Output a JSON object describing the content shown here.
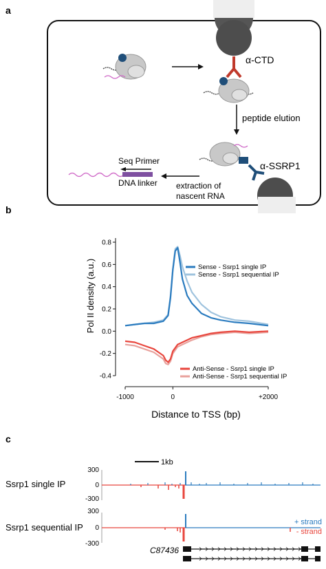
{
  "panel_a": {
    "label": "a",
    "antibody1": "α-CTD",
    "step1": "peptide elution",
    "antibody2": "α-SSRP1",
    "primer": "Seq Primer",
    "linker": "DNA linker",
    "extraction_line1": "extraction of",
    "extraction_line2": "nascent RNA"
  },
  "panel_b": {
    "label": "b",
    "colors": {
      "sense_single": "#2a7bbf",
      "sense_seq": "#9fc3de",
      "anti_single": "#e8453c",
      "anti_seq": "#e8a09b"
    },
    "chart_data": {
      "type": "line",
      "xlabel": "Distance to TSS (bp)",
      "ylabel": "Pol II density (a.u.)",
      "xlim": [
        -1000,
        2000
      ],
      "ylim": [
        -0.4,
        0.8
      ],
      "xticks": [
        "-1000",
        "0",
        "+2000"
      ],
      "yticks": [
        "0.8",
        "0.6",
        "0.4",
        "0.2",
        "0.0",
        "-0.2",
        "-0.4"
      ],
      "grid": false,
      "legend_top": [
        "Sense - Ssrp1 single IP",
        "Sense - Ssrp1 sequential IP"
      ],
      "legend_bottom": [
        "Anti-Sense - Ssrp1 single IP",
        "Anti-Sense - Ssrp1 sequential IP"
      ],
      "series": [
        {
          "name": "Sense - Ssrp1 single IP",
          "x": [
            -1000,
            -800,
            -600,
            -400,
            -200,
            -100,
            -50,
            0,
            50,
            100,
            150,
            200,
            300,
            400,
            600,
            800,
            1000,
            1300,
            1600,
            2000
          ],
          "y": [
            0.05,
            0.06,
            0.07,
            0.07,
            0.09,
            0.14,
            0.3,
            0.55,
            0.72,
            0.75,
            0.62,
            0.47,
            0.32,
            0.25,
            0.16,
            0.12,
            0.1,
            0.08,
            0.07,
            0.05
          ]
        },
        {
          "name": "Sense - Ssrp1 sequential IP",
          "x": [
            -1000,
            -800,
            -600,
            -400,
            -200,
            -100,
            -50,
            0,
            50,
            100,
            150,
            200,
            300,
            400,
            600,
            800,
            1000,
            1300,
            1600,
            2000
          ],
          "y": [
            0.05,
            0.06,
            0.07,
            0.08,
            0.1,
            0.15,
            0.32,
            0.56,
            0.74,
            0.76,
            0.68,
            0.58,
            0.45,
            0.35,
            0.24,
            0.17,
            0.13,
            0.1,
            0.09,
            0.06
          ]
        },
        {
          "name": "Anti-Sense - Ssrp1 single IP",
          "x": [
            -1000,
            -800,
            -600,
            -400,
            -300,
            -200,
            -150,
            -100,
            -50,
            0,
            100,
            200,
            400,
            600,
            800,
            1000,
            1300,
            1600,
            2000
          ],
          "y": [
            -0.09,
            -0.1,
            -0.13,
            -0.16,
            -0.19,
            -0.22,
            -0.26,
            -0.28,
            -0.25,
            -0.18,
            -0.12,
            -0.1,
            -0.06,
            -0.04,
            -0.02,
            -0.01,
            0.0,
            -0.01,
            0.0
          ]
        },
        {
          "name": "Anti-Sense - Ssrp1 sequential IP",
          "x": [
            -1000,
            -800,
            -600,
            -400,
            -300,
            -200,
            -150,
            -100,
            -50,
            0,
            100,
            200,
            400,
            600,
            800,
            1000,
            1300,
            1600,
            2000
          ],
          "y": [
            -0.12,
            -0.13,
            -0.16,
            -0.19,
            -0.22,
            -0.25,
            -0.29,
            -0.3,
            -0.27,
            -0.2,
            -0.14,
            -0.12,
            -0.08,
            -0.05,
            -0.03,
            -0.02,
            -0.01,
            -0.02,
            -0.01
          ]
        }
      ]
    }
  },
  "panel_c": {
    "label": "c",
    "scale_bar": "1kb",
    "track1_label": "Ssrp1 single IP",
    "track2_label": "Ssrp1 sequential IP",
    "tick_300": "300",
    "tick_0": "0",
    "tick_m300": "-300",
    "plus_strand": "+ strand",
    "minus_strand": "- strand",
    "gene_name": "C87436",
    "plus_color": "#2a7bbf",
    "minus_color": "#e8453c"
  }
}
